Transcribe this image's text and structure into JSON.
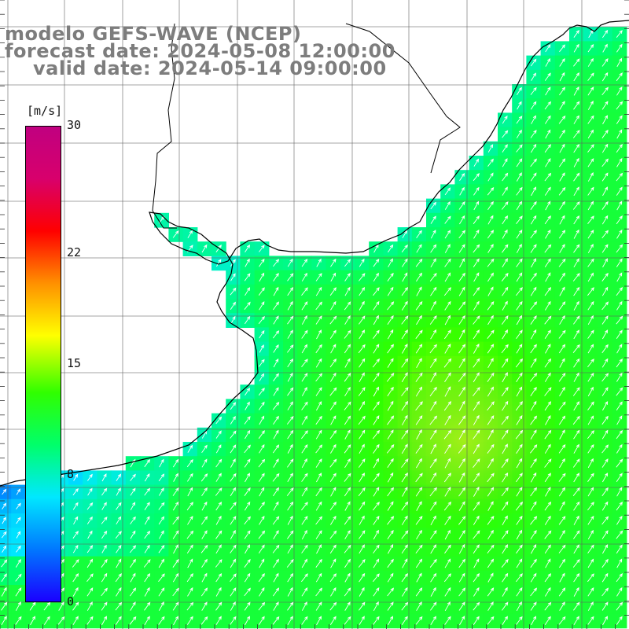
{
  "title": {
    "model": "modelo GEFS-WAVE (NCEP)",
    "forecast": "forecast date: 2024-05-08 12:00:00",
    "valid": "valid date: 2024-05-14 09:00:00"
  },
  "colorbar": {
    "unit": "[m/s]",
    "min": 0,
    "max": 30,
    "ticks": [
      {
        "label": "30",
        "value": 30
      },
      {
        "label": "22",
        "value": 22
      },
      {
        "label": "15",
        "value": 15
      },
      {
        "label": "8",
        "value": 8
      },
      {
        "label": "0",
        "value": 0
      }
    ],
    "colors": [
      "#1a00ff",
      "#0078ff",
      "#00e8ff",
      "#00ff6a",
      "#30ff00",
      "#ffff00",
      "#ff9000",
      "#ff0000",
      "#d8006c",
      "#c00080"
    ]
  },
  "colors": {
    "land": "#ffffff",
    "coastline": "#000000",
    "grid": "#606060",
    "arrows": "#ffffff",
    "title_text": "#7d7d7d"
  }
}
